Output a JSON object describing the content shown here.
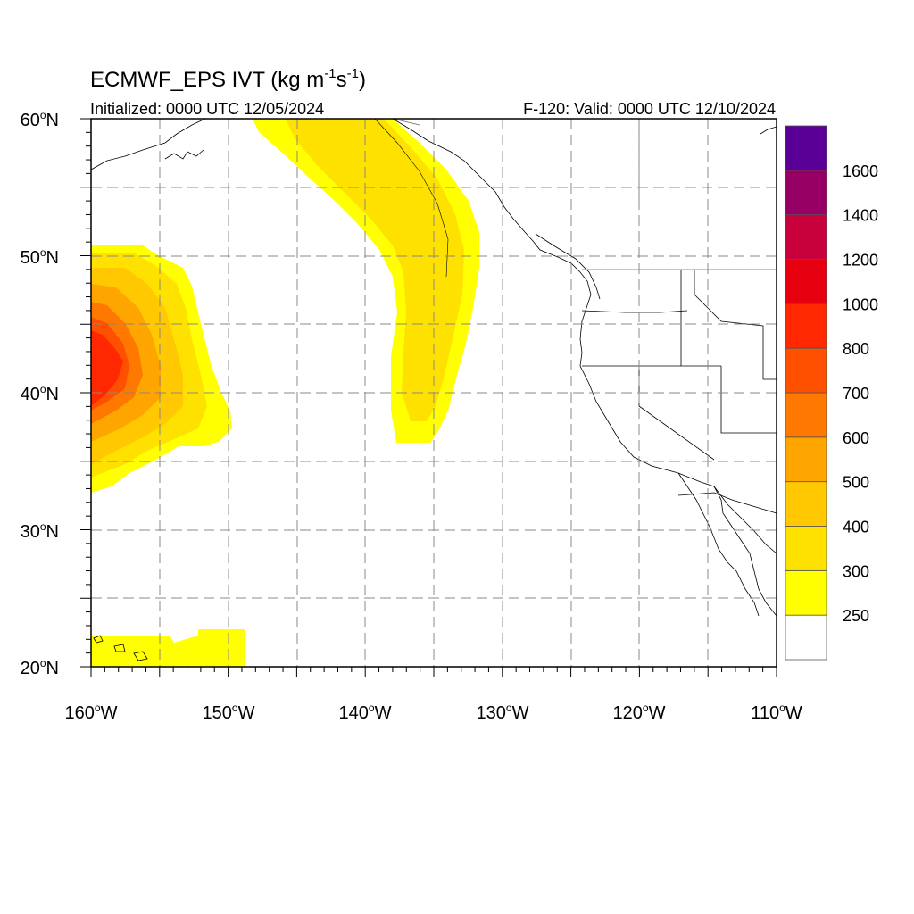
{
  "title": {
    "model": "ECMWF_EPS IVT",
    "units_prefix": "(kg m",
    "units_exp1": "-1",
    "units_mid": "s",
    "units_exp2": "-1",
    "units_suffix": ")"
  },
  "subtitle": {
    "initialized": "Initialized: 0000 UTC 12/05/2024",
    "valid": "F-120: Valid: 0000 UTC 12/10/2024"
  },
  "axes": {
    "lat_labels": [
      "60",
      "50",
      "40",
      "30",
      "20"
    ],
    "lat_hemisphere": "N",
    "lon_labels": [
      "160",
      "150",
      "140",
      "130",
      "120",
      "110"
    ],
    "lon_hemisphere": "W",
    "degree_symbol": "o"
  },
  "colorbar": {
    "labels": [
      "250",
      "300",
      "400",
      "500",
      "600",
      "700",
      "800",
      "1000",
      "1200",
      "1400",
      "1600"
    ],
    "colors": [
      "#ffffff",
      "#ffff00",
      "#ffe100",
      "#ffc800",
      "#ffa500",
      "#ff7800",
      "#ff5000",
      "#ff2800",
      "#e6000f",
      "#c8003c",
      "#960064",
      "#5a0096"
    ]
  },
  "map": {
    "grid_style": "dashed",
    "region": "Northeast Pacific and western North America",
    "lon_range": [
      -160,
      -110
    ],
    "lat_range": [
      20,
      60
    ]
  }
}
